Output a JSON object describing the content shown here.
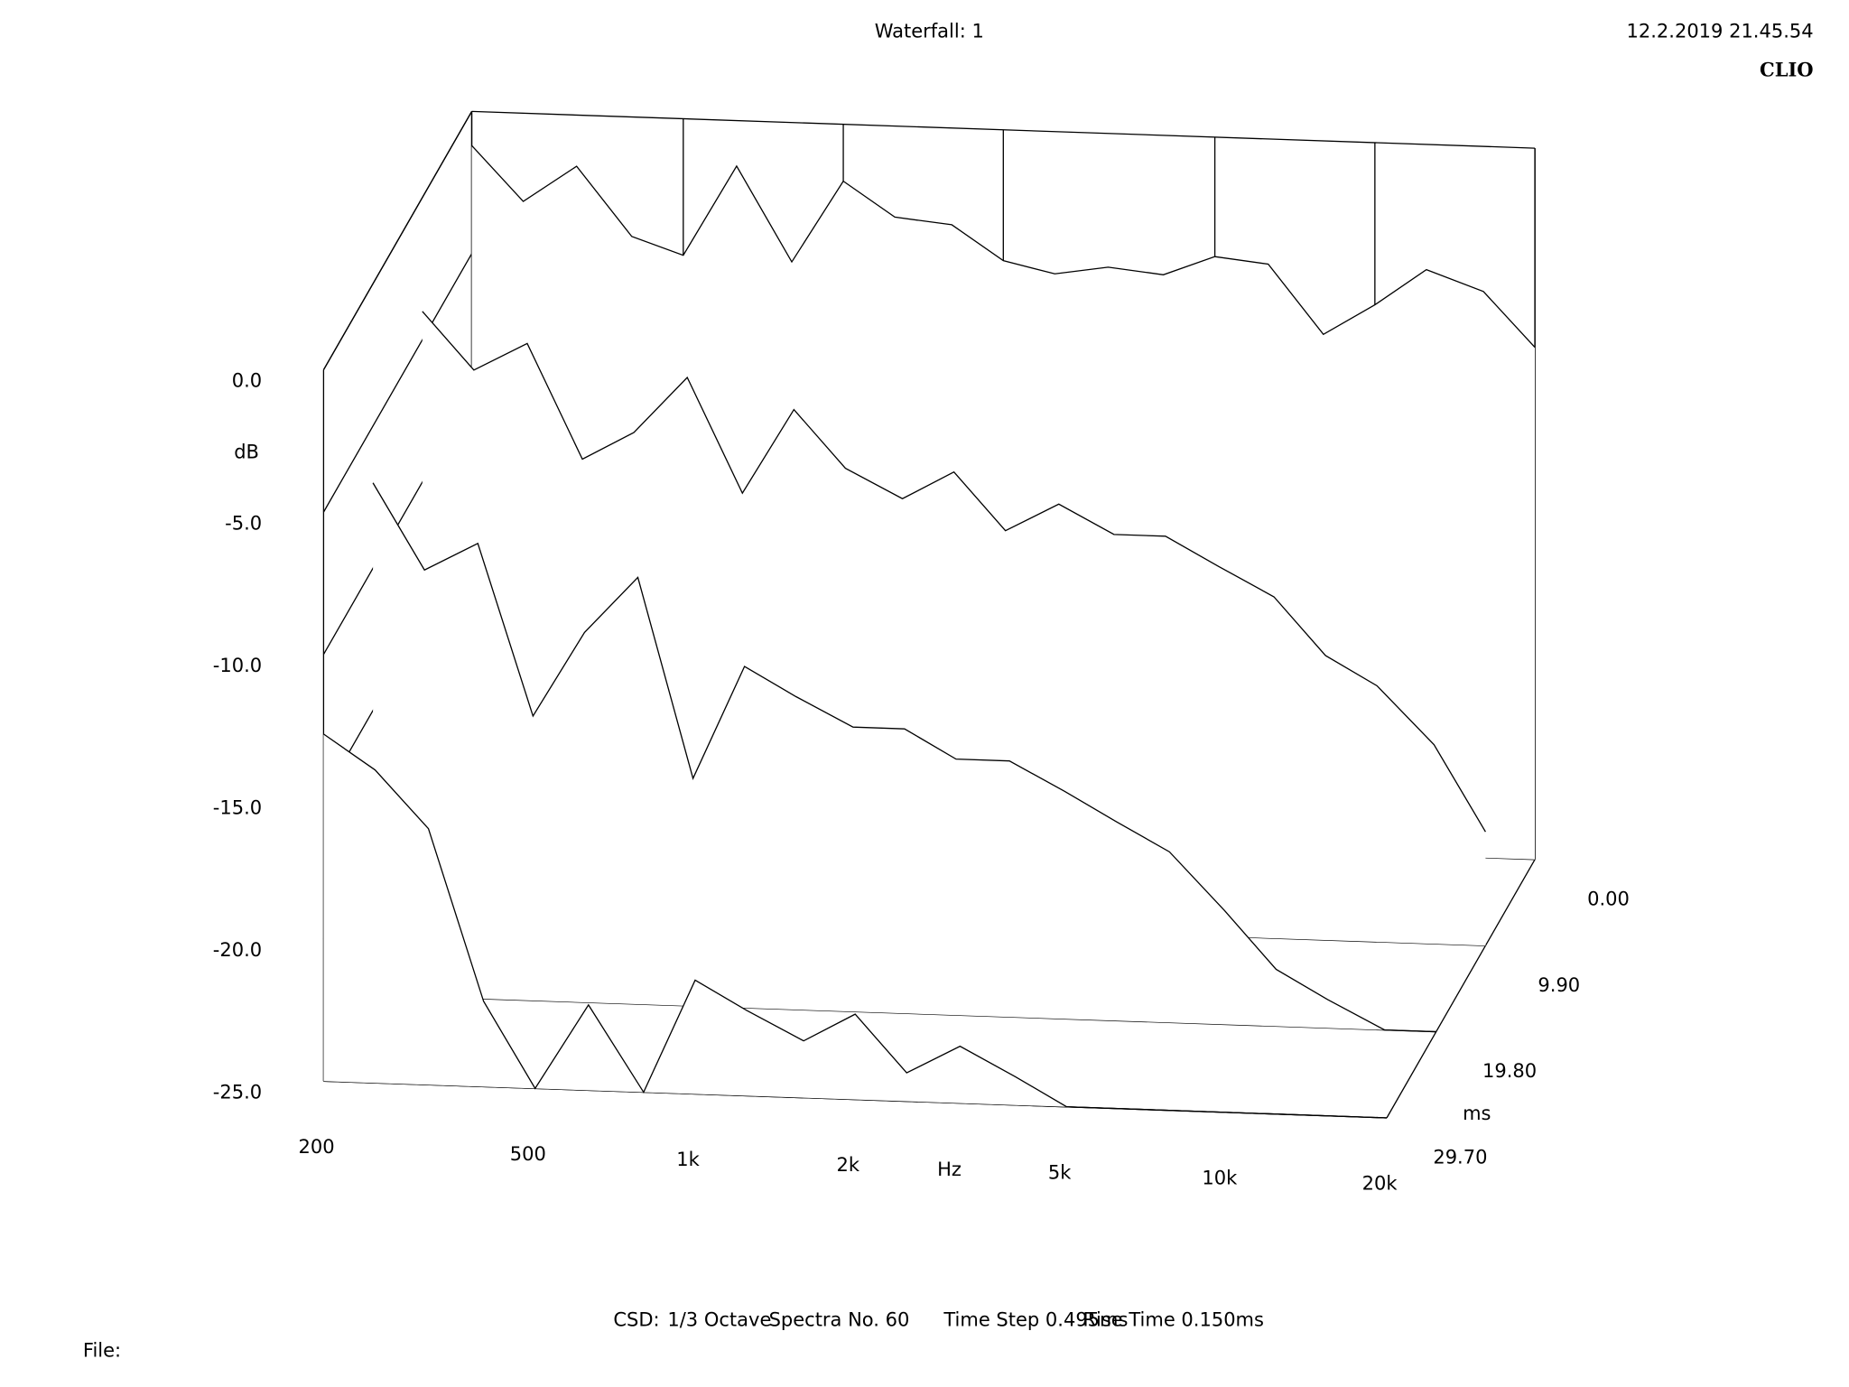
{
  "chart_data": {
    "type": "waterfall",
    "title": "Waterfall: 1",
    "timestamp": "12.2.2019 21.45.54",
    "brand": "CLIO",
    "x_label": "Hz",
    "y_label": "dB",
    "z_label": "ms",
    "xscale": "log",
    "xlim": [
      200,
      20000
    ],
    "xticks": [
      200,
      500,
      {
        "value": 1000,
        "label": "1k"
      },
      {
        "value": 2000,
        "label": "2k"
      },
      {
        "value": 5000,
        "label": "5k"
      },
      {
        "value": 10000,
        "label": "10k"
      },
      {
        "value": 20000,
        "label": "20k"
      }
    ],
    "ylim": [
      -25,
      0
    ],
    "yticks": [
      {
        "value": 0,
        "label": "0.0"
      },
      {
        "value": -5,
        "label": "-5.0"
      },
      {
        "value": -10,
        "label": "-10.0"
      },
      {
        "value": -15,
        "label": "-15.0"
      },
      {
        "value": -20,
        "label": "-20.0"
      },
      {
        "value": -25,
        "label": "-25.0"
      }
    ],
    "zlim": [
      0,
      29.7
    ],
    "zticks": [
      {
        "value": 0,
        "label": "0.00"
      },
      {
        "value": 9.9,
        "label": "9.90"
      },
      {
        "value": 19.8,
        "label": "19.80"
      },
      {
        "value": 29.7,
        "label": "29.70"
      }
    ],
    "color": "#000000",
    "x": [
      200,
      250,
      315,
      400,
      500,
      630,
      800,
      1000,
      1250,
      1600,
      2000,
      2500,
      3150,
      4000,
      5000,
      6300,
      8000,
      10000,
      12500,
      16000,
      20000
    ],
    "series": [
      {
        "time": 0,
        "values": [
          -1.2,
          -3.1,
          -1.8,
          -4.2,
          -4.8,
          -1.6,
          -4.9,
          -2.0,
          -3.2,
          -3.4,
          -4.6,
          -5.0,
          -4.7,
          -4.9,
          -4.2,
          -4.4,
          -6.8,
          -5.7,
          -4.4,
          -5.1,
          -7.0
        ]
      },
      {
        "time": 9.9,
        "values": [
          -4,
          -6,
          -5,
          -9,
          -8,
          -6,
          -10,
          -7,
          -9,
          -10,
          -9,
          -11,
          -10,
          -11,
          -11,
          -12,
          -13,
          -15,
          -16,
          -18,
          -21
        ]
      },
      {
        "time": 19.8,
        "values": [
          -7,
          -10,
          -9,
          -15,
          -12,
          -10,
          -17,
          -13,
          -14,
          -15,
          -15,
          -16,
          -16,
          -17,
          -18,
          -19,
          -21,
          -23,
          -24,
          -25,
          -25
        ]
      },
      {
        "time": 29.7,
        "values": [
          -12.8,
          -14,
          -16,
          -22,
          -25,
          -22,
          -25,
          -21,
          -22,
          -23,
          -22,
          -24,
          -23,
          -24,
          -25,
          -25,
          -25,
          -25,
          -25,
          -25,
          -25
        ]
      }
    ],
    "footer": [
      "CSD:",
      "1/3 Octave",
      "Spectra No. 60",
      "Time Step 0.495ms",
      "Rise Time 0.150ms"
    ],
    "file_label": "File:"
  }
}
